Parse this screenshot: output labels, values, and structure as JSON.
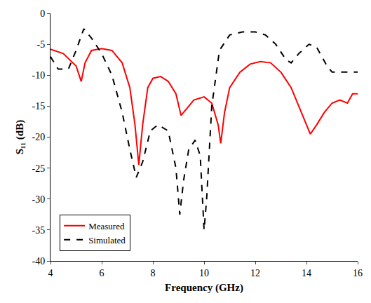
{
  "chart_data": {
    "type": "line",
    "x_label": "Frequency (GHz)",
    "y_label": "S₁₁ (dB)",
    "xlim": [
      4,
      16
    ],
    "xticks": [
      4,
      6,
      8,
      10,
      12,
      14,
      16
    ],
    "ylim": [
      -40,
      0
    ],
    "yticks": [
      -40,
      -35,
      -30,
      -25,
      -20,
      -15,
      -10,
      -5,
      0
    ],
    "grid": false,
    "legend": "bottom left",
    "series": [
      {
        "name": "Measured",
        "color": "#ff0000",
        "line_style": "solid",
        "x": [
          4,
          4.5,
          5.0,
          5.2,
          5.35,
          5.6,
          6.0,
          6.4,
          6.8,
          7.1,
          7.3,
          7.45,
          7.6,
          7.8,
          8.0,
          8.3,
          8.6,
          8.9,
          9.1,
          9.3,
          9.6,
          10.0,
          10.3,
          10.55,
          10.65,
          10.8,
          11.0,
          11.4,
          11.8,
          12.2,
          12.6,
          13.0,
          13.4,
          13.7,
          14.0,
          14.15,
          14.4,
          14.7,
          15.0,
          15.3,
          15.6,
          15.8,
          16
        ],
        "values": [
          -5.8,
          -6.5,
          -8.5,
          -11,
          -8,
          -6,
          -5.7,
          -6,
          -8,
          -12,
          -18,
          -24.5,
          -18,
          -12,
          -10.5,
          -10.2,
          -11,
          -13,
          -16.5,
          -15.5,
          -14,
          -13.5,
          -14.5,
          -18,
          -21,
          -16,
          -12,
          -9.5,
          -8.2,
          -7.8,
          -8,
          -9.5,
          -12,
          -15,
          -18,
          -19.5,
          -18,
          -16,
          -14.5,
          -14,
          -14.5,
          -13,
          -13
        ]
      },
      {
        "name": "Simulated",
        "color": "#000000",
        "line_style": "dash",
        "x": [
          4,
          4.3,
          4.7,
          5.0,
          5.3,
          5.6,
          6.0,
          6.4,
          6.8,
          7.1,
          7.35,
          7.6,
          7.9,
          8.2,
          8.6,
          8.9,
          9.05,
          9.2,
          9.4,
          9.65,
          9.85,
          10.0,
          10.1,
          10.3,
          10.6,
          11.0,
          11.5,
          12.0,
          12.4,
          12.8,
          13.2,
          13.4,
          13.7,
          14.1,
          14.4,
          14.8,
          15.0,
          15.5,
          16
        ],
        "values": [
          -7,
          -9,
          -9,
          -6,
          -2.5,
          -4,
          -6.5,
          -10,
          -16,
          -22,
          -26.5,
          -24,
          -19,
          -18,
          -19,
          -25,
          -32.5,
          -27,
          -22,
          -20.5,
          -23,
          -35,
          -30,
          -15,
          -6,
          -3.5,
          -3,
          -3,
          -3.5,
          -5,
          -7.5,
          -8,
          -6.5,
          -5,
          -5.5,
          -8.5,
          -9.5,
          -9.5,
          -9.5
        ]
      }
    ]
  }
}
